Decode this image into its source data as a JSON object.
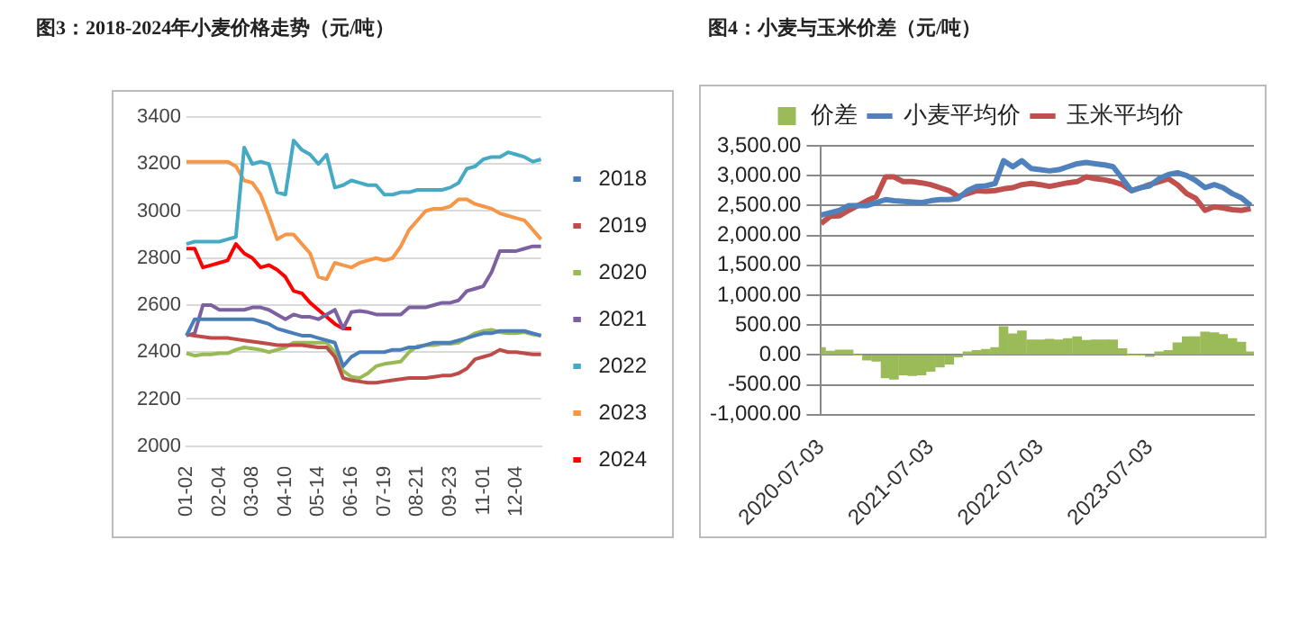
{
  "chart_data": [
    {
      "type": "line",
      "title": "图3：2018-2024年小麦价格走势（元/吨）",
      "categories": [
        "01-02",
        null,
        null,
        null,
        "02-04",
        null,
        null,
        null,
        "03-08",
        null,
        null,
        null,
        "04-10",
        null,
        null,
        null,
        "05-14",
        null,
        null,
        null,
        "06-16",
        null,
        null,
        null,
        "07-19",
        null,
        null,
        null,
        "08-21",
        null,
        null,
        null,
        "09-23",
        null,
        null,
        null,
        "11-01",
        null,
        null,
        null,
        "12-04",
        null,
        null,
        null
      ],
      "ylim": [
        2000,
        3400
      ],
      "yticks": [
        2000,
        2200,
        2400,
        2600,
        2800,
        3000,
        3200,
        3400
      ],
      "grid": "y",
      "legend": "right",
      "marker": "none",
      "series": [
        {
          "name": "2018",
          "color": "#4a7ebb",
          "values": [
            2470,
            2540,
            2540,
            2540,
            2540,
            2540,
            2540,
            2540,
            2540,
            2530,
            2520,
            2500,
            2490,
            2480,
            2470,
            2470,
            2460,
            2450,
            2440,
            2340,
            2380,
            2400,
            2400,
            2400,
            2400,
            2410,
            2410,
            2420,
            2420,
            2430,
            2440,
            2440,
            2440,
            2450,
            2460,
            2470,
            2480,
            2480,
            2490,
            2490,
            2490,
            2490,
            2480,
            2470
          ]
        },
        {
          "name": "2019",
          "color": "#be4b48",
          "values": [
            2475,
            2470,
            2465,
            2460,
            2460,
            2460,
            2455,
            2450,
            2445,
            2440,
            2435,
            2430,
            2430,
            2430,
            2430,
            2425,
            2420,
            2420,
            2380,
            2290,
            2280,
            2275,
            2270,
            2270,
            2275,
            2280,
            2285,
            2290,
            2290,
            2290,
            2295,
            2300,
            2300,
            2310,
            2330,
            2370,
            2380,
            2390,
            2410,
            2400,
            2400,
            2395,
            2390,
            2390
          ]
        },
        {
          "name": "2020",
          "color": "#98b954",
          "values": [
            2395,
            2385,
            2390,
            2390,
            2395,
            2395,
            2410,
            2420,
            2415,
            2410,
            2400,
            2410,
            2420,
            2440,
            2440,
            2440,
            2440,
            2440,
            2400,
            2320,
            2295,
            2290,
            2310,
            2340,
            2350,
            2355,
            2360,
            2400,
            2425,
            2430,
            2430,
            2435,
            2435,
            2440,
            2460,
            2480,
            2490,
            2495,
            2485,
            2480,
            2480,
            2485,
            2475,
            2470
          ]
        },
        {
          "name": "2021",
          "color": "#7d60a0",
          "values": [
            2470,
            2480,
            2600,
            2600,
            2580,
            2580,
            2580,
            2580,
            2590,
            2590,
            2580,
            2560,
            2540,
            2560,
            2550,
            2550,
            2540,
            2560,
            2580,
            2500,
            2570,
            2575,
            2570,
            2560,
            2560,
            2560,
            2560,
            2590,
            2590,
            2590,
            2600,
            2610,
            2610,
            2620,
            2660,
            2670,
            2680,
            2740,
            2830,
            2830,
            2830,
            2840,
            2850,
            2850
          ]
        },
        {
          "name": "2022",
          "color": "#46aac5",
          "values": [
            2860,
            2870,
            2870,
            2870,
            2870,
            2880,
            2890,
            3270,
            3200,
            3210,
            3200,
            3080,
            3070,
            3300,
            3260,
            3240,
            3200,
            3240,
            3100,
            3110,
            3130,
            3120,
            3110,
            3110,
            3070,
            3070,
            3080,
            3080,
            3090,
            3090,
            3090,
            3090,
            3100,
            3120,
            3180,
            3190,
            3220,
            3230,
            3230,
            3250,
            3240,
            3230,
            3210,
            3220
          ]
        },
        {
          "name": "2023",
          "color": "#f79646",
          "values": [
            3210,
            3210,
            3210,
            3210,
            3210,
            3210,
            3190,
            3130,
            3120,
            3070,
            2980,
            2880,
            2900,
            2900,
            2860,
            2820,
            2720,
            2710,
            2780,
            2770,
            2760,
            2780,
            2790,
            2800,
            2790,
            2800,
            2850,
            2920,
            2960,
            3000,
            3010,
            3010,
            3020,
            3050,
            3050,
            3030,
            3020,
            3010,
            2990,
            2980,
            2970,
            2960,
            2920,
            2880
          ]
        },
        {
          "name": "2024",
          "color": "#ff0000",
          "values": [
            2840,
            2840,
            2760,
            2770,
            2780,
            2790,
            2860,
            2820,
            2800,
            2760,
            2770,
            2750,
            2720,
            2660,
            2650,
            2610,
            2580,
            2550,
            2520,
            2500,
            2500,
            null,
            null,
            null,
            null,
            null,
            null,
            null,
            null,
            null,
            null,
            null,
            null,
            null,
            null,
            null,
            null,
            null,
            null,
            null,
            null,
            null,
            null,
            null
          ]
        }
      ]
    },
    {
      "type": "line",
      "title": "图4：小麦与玉米价差（元/吨）",
      "x": [
        "2020-07-03",
        "2020-08-03",
        "2020-09-03",
        "2020-10-03",
        "2020-11-03",
        "2020-12-03",
        "2021-01-03",
        "2021-02-03",
        "2021-03-03",
        "2021-04-03",
        "2021-05-03",
        "2021-06-03",
        "2021-07-03",
        "2021-08-03",
        "2021-09-03",
        "2021-10-03",
        "2021-11-03",
        "2021-12-03",
        "2022-01-03",
        "2022-02-03",
        "2022-03-03",
        "2022-04-03",
        "2022-05-03",
        "2022-06-03",
        "2022-07-03",
        "2022-08-03",
        "2022-09-03",
        "2022-10-03",
        "2022-11-03",
        "2022-12-03",
        "2023-01-03",
        "2023-02-03",
        "2023-03-03",
        "2023-04-03",
        "2023-05-03",
        "2023-06-03",
        "2023-07-03",
        "2023-08-03",
        "2023-09-03",
        "2023-10-03",
        "2023-11-03",
        "2023-12-03",
        "2024-01-03",
        "2024-02-03",
        "2024-03-03",
        "2024-04-03",
        "2024-05-03",
        "2024-06-03"
      ],
      "xlim": [
        "2020-07-03",
        "2024-06-14"
      ],
      "xticks": [
        "2020-07-03",
        "2021-07-03",
        "2022-07-03",
        "2023-07-03"
      ],
      "ylim": [
        -1000,
        3500
      ],
      "yticks": [
        {
          "value": -1000,
          "label": "-1,000.00"
        },
        {
          "value": -500,
          "label": "-500.00"
        },
        {
          "value": 0,
          "label": "0.00"
        },
        {
          "value": 500,
          "label": "500.00"
        },
        {
          "value": 1000,
          "label": "1,000.00"
        },
        {
          "value": 1500,
          "label": "1,500.00"
        },
        {
          "value": 2000,
          "label": "2,000.00"
        },
        {
          "value": 2500,
          "label": "2,500.00"
        },
        {
          "value": 3000,
          "label": "3,000.00"
        },
        {
          "value": 3500,
          "label": "3,500.00"
        }
      ],
      "grid": "y",
      "legend": "top",
      "marker": "none",
      "series": [
        {
          "name": "价差",
          "type": "bar",
          "color": "#9bbb59",
          "values": [
            120,
            60,
            80,
            80,
            0,
            -80,
            -100,
            -380,
            -400,
            -330,
            -340,
            -330,
            -270,
            -200,
            -150,
            -30,
            50,
            70,
            90,
            120,
            470,
            350,
            400,
            250,
            250,
            260,
            250,
            270,
            300,
            240,
            250,
            250,
            250,
            100,
            0,
            0,
            -20,
            50,
            70,
            200,
            300,
            300,
            380,
            370,
            340,
            270,
            210,
            50
          ]
        },
        {
          "name": "小麦平均价",
          "color": "#4f81bd",
          "values": [
            2340,
            2380,
            2420,
            2500,
            2500,
            2500,
            2550,
            2600,
            2580,
            2570,
            2560,
            2550,
            2580,
            2600,
            2600,
            2620,
            2750,
            2820,
            2830,
            2870,
            3250,
            3150,
            3250,
            3120,
            3100,
            3080,
            3100,
            3150,
            3200,
            3220,
            3200,
            3180,
            3150,
            2950,
            2750,
            2800,
            2830,
            2950,
            3020,
            3050,
            3000,
            2920,
            2800,
            2850,
            2800,
            2700,
            2630,
            2500
          ]
        },
        {
          "name": "玉米平均价",
          "color": "#c0504d",
          "values": [
            2200,
            2320,
            2330,
            2420,
            2500,
            2580,
            2650,
            2980,
            2980,
            2900,
            2900,
            2880,
            2850,
            2800,
            2750,
            2650,
            2700,
            2750,
            2740,
            2750,
            2780,
            2800,
            2850,
            2870,
            2850,
            2820,
            2850,
            2880,
            2900,
            2980,
            2950,
            2930,
            2900,
            2850,
            2750,
            2800,
            2850,
            2900,
            2950,
            2850,
            2700,
            2620,
            2420,
            2480,
            2460,
            2430,
            2420,
            2450
          ]
        }
      ]
    }
  ]
}
